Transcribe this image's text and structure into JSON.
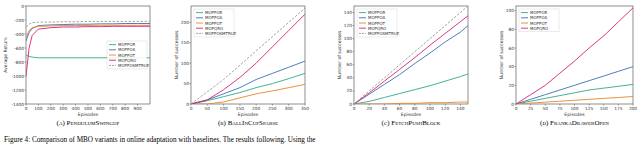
{
  "caption": "Figure 4: Comparison of MBO variants in online adaptation with baselines. The results following. Using the",
  "chart_data": [
    {
      "type": "line",
      "title": "(a) PendulumSwingup",
      "x_label": "Episodes",
      "y_label": "Average Return",
      "x": [
        0,
        25,
        50,
        100,
        200,
        300,
        400,
        500,
        600,
        700,
        800,
        900,
        1000
      ],
      "xlim": [
        0,
        1000
      ],
      "xticks": [
        0,
        100,
        200,
        300,
        400,
        500,
        600,
        700,
        800,
        900
      ],
      "ylim": [
        -1400,
        0
      ],
      "yticks": [
        -1400,
        -1200,
        -1000,
        -800,
        -600,
        -400,
        -200,
        0
      ],
      "grid": false,
      "legend": "right",
      "series": [
        {
          "name": "MOPPOR",
          "color": "#2fa98c",
          "line_style": "solid",
          "values": [
            -700,
            -720,
            -730,
            -740,
            -740,
            -740,
            -740,
            -740,
            -740,
            -740,
            -740,
            -740,
            -740
          ]
        },
        {
          "name": "MOPPOA",
          "color": "#3b6fb6",
          "line_style": "solid",
          "values": [
            -500,
            -380,
            -320,
            -280,
            -270,
            -265,
            -260,
            -260,
            -255,
            -255,
            -250,
            -250,
            -250
          ]
        },
        {
          "name": "MOPPOT",
          "color": "#e8862a",
          "line_style": "solid",
          "values": [
            -450,
            -350,
            -310,
            -290,
            -285,
            -280,
            -280,
            -278,
            -275,
            -275,
            -275,
            -275,
            -275
          ]
        },
        {
          "name": "MOPQRO",
          "color": "#d6246e",
          "line_style": "solid",
          "values": [
            -1000,
            -600,
            -420,
            -330,
            -310,
            -300,
            -300,
            -295,
            -295,
            -290,
            -290,
            -290,
            -290
          ]
        },
        {
          "name": "MOPPOSMTRUE",
          "color": "#9a9a9a",
          "line_style": "dashed",
          "values": [
            -300,
            -260,
            -240,
            -230,
            -230,
            -225,
            -225,
            -220,
            -220,
            -220,
            -220,
            -220,
            -220
          ]
        }
      ]
    },
    {
      "type": "line",
      "title": "(b) BallInCupSparse",
      "x_label": "Episodes",
      "y_label": "Number of successes",
      "x": [
        0,
        50,
        100,
        150,
        200,
        250,
        300,
        350
      ],
      "xlim": [
        0,
        350
      ],
      "xticks": [
        0,
        50,
        100,
        150,
        200,
        250,
        300,
        350
      ],
      "ylim": [
        0,
        240
      ],
      "yticks": [
        0,
        50,
        100,
        150,
        200
      ],
      "grid": false,
      "legend": "upper left",
      "series": [
        {
          "name": "MOPPOR",
          "color": "#2fa98c",
          "line_style": "solid",
          "values": [
            0,
            8,
            18,
            28,
            40,
            50,
            62,
            75
          ]
        },
        {
          "name": "MOPPOA",
          "color": "#3b6fb6",
          "line_style": "solid",
          "values": [
            0,
            10,
            25,
            40,
            60,
            75,
            90,
            105
          ]
        },
        {
          "name": "MOPPOT",
          "color": "#e8862a",
          "line_style": "solid",
          "values": [
            0,
            0,
            5,
            15,
            25,
            32,
            40,
            48
          ]
        },
        {
          "name": "MOPQRO",
          "color": "#d6246e",
          "line_style": "solid",
          "values": [
            0,
            10,
            35,
            65,
            100,
            140,
            180,
            220
          ]
        },
        {
          "name": "MOPPOSMTRUE",
          "color": "#9a9a9a",
          "line_style": "dashed",
          "values": [
            0,
            30,
            60,
            95,
            130,
            165,
            200,
            235
          ]
        }
      ]
    },
    {
      "type": "line",
      "title": "(c) FetchPushBlock",
      "x_label": "Episodes",
      "y_label": "Number of successes",
      "x": [
        0,
        20,
        40,
        60,
        80,
        100,
        120,
        140,
        150
      ],
      "xlim": [
        0,
        150
      ],
      "xticks": [
        0,
        20,
        40,
        60,
        80,
        100,
        120,
        140
      ],
      "ylim": [
        0,
        150
      ],
      "yticks": [
        0,
        20,
        40,
        60,
        80,
        100,
        120,
        140
      ],
      "grid": false,
      "legend": "upper left",
      "series": [
        {
          "name": "MOPPOR",
          "color": "#2fa98c",
          "line_style": "solid",
          "values": [
            0,
            4,
            10,
            16,
            22,
            28,
            35,
            42,
            46
          ]
        },
        {
          "name": "MOPPOA",
          "color": "#3b6fb6",
          "line_style": "solid",
          "values": [
            0,
            15,
            30,
            45,
            62,
            78,
            95,
            110,
            120
          ]
        },
        {
          "name": "MOPPOT",
          "color": "#e8862a",
          "line_style": "solid",
          "values": [
            0,
            0,
            0,
            1,
            1,
            2,
            2,
            3,
            3
          ]
        },
        {
          "name": "MOPQRO",
          "color": "#d6246e",
          "line_style": "solid",
          "values": [
            0,
            17,
            35,
            53,
            71,
            90,
            108,
            126,
            135
          ]
        },
        {
          "name": "MOPPOSMTRUE",
          "color": "#9a9a9a",
          "line_style": "dashed",
          "values": [
            0,
            20,
            40,
            60,
            80,
            100,
            120,
            140,
            150
          ]
        }
      ]
    },
    {
      "type": "line",
      "title": "(d) FrankaDrawerOpen",
      "x_label": "Episodes",
      "y_label": "Number of successes",
      "x": [
        0,
        25,
        50,
        75,
        100,
        125,
        150,
        175,
        200
      ],
      "xlim": [
        0,
        200
      ],
      "xticks": [
        0,
        25,
        50,
        75,
        100,
        125,
        150,
        175,
        200
      ],
      "ylim": [
        0,
        105
      ],
      "yticks": [
        0,
        20,
        40,
        60,
        80,
        100
      ],
      "grid": false,
      "legend": "upper left",
      "series": [
        {
          "name": "MOPPOR",
          "color": "#2fa98c",
          "line_style": "solid",
          "values": [
            0,
            3,
            6,
            9,
            12,
            15,
            17,
            19,
            21
          ]
        },
        {
          "name": "MOPPOA",
          "color": "#3b6fb6",
          "line_style": "solid",
          "values": [
            0,
            5,
            10,
            15,
            20,
            25,
            30,
            35,
            40
          ]
        },
        {
          "name": "MOPPOT",
          "color": "#e8862a",
          "line_style": "solid",
          "values": [
            0,
            1,
            2,
            3,
            4,
            5,
            6,
            7,
            8
          ]
        },
        {
          "name": "MOPQRO",
          "color": "#d6246e",
          "line_style": "solid",
          "values": [
            0,
            10,
            20,
            33,
            46,
            60,
            73,
            88,
            103
          ]
        }
      ]
    }
  ]
}
